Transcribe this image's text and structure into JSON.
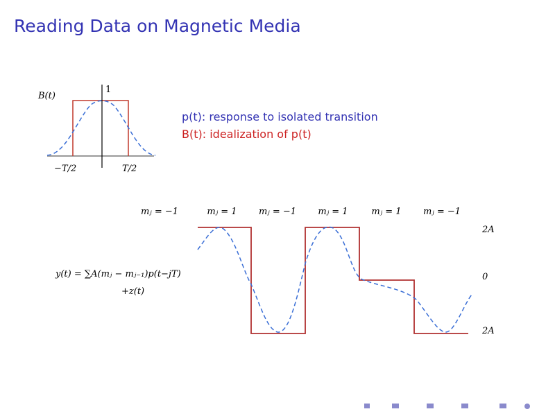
{
  "header": {
    "title": "Reading Data on Magnetic Media"
  },
  "pulse_diagram": {
    "y_label": "B(t)",
    "peak_label": "1",
    "left_label": "−T/2",
    "right_label": "T/2"
  },
  "legend": {
    "p_line": "p(t): response to isolated transition",
    "b_line": "B(t): idealization of p(t)"
  },
  "waveform": {
    "symbols": [
      "mⱼ = −1",
      "mⱼ = 1",
      "mⱼ = −1",
      "mⱼ = 1",
      "mⱼ = 1",
      "mⱼ = −1"
    ],
    "level_labels": [
      "2A",
      "0",
      "2A"
    ],
    "equation": "y(t) = ∑A(mⱼ − mⱼ₋₁)p(t−jT)",
    "noise_term": "+z(t)"
  }
}
